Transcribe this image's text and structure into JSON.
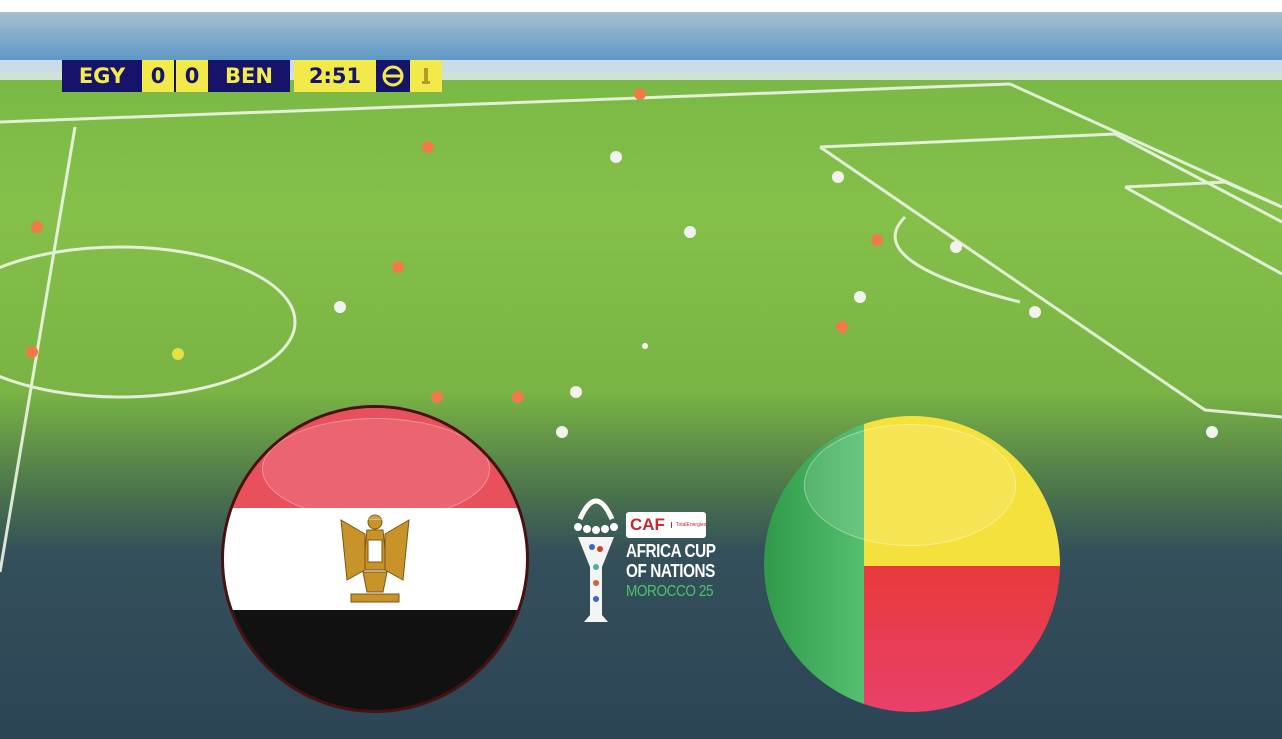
{
  "scoreboard": {
    "home_team": "EGY",
    "home_score": "0",
    "away_score": "0",
    "away_team": "BEN",
    "clock": "2:51",
    "brand_icon": "efootball-logo-icon",
    "trophy_icon": "trophy-icon",
    "colors": {
      "navy": "#15146a",
      "yellow": "#f2ea4a"
    }
  },
  "flags": {
    "home": {
      "country": "Egypt",
      "icon": "egypt-flag-icon",
      "colors": [
        "#e8505c",
        "#ffffff",
        "#111111"
      ]
    },
    "away": {
      "country": "Benin",
      "icon": "benin-flag-icon",
      "colors": [
        "#3aa85a",
        "#f4e13c",
        "#e83a3a"
      ]
    }
  },
  "tournament_logo": {
    "brand": "CAF",
    "sponsor": "TotalEnergies",
    "line1": "AFRICA CUP",
    "line2": "OF NATIONS",
    "line3": "MOROCCO 25",
    "accent": "#4cc46a"
  }
}
